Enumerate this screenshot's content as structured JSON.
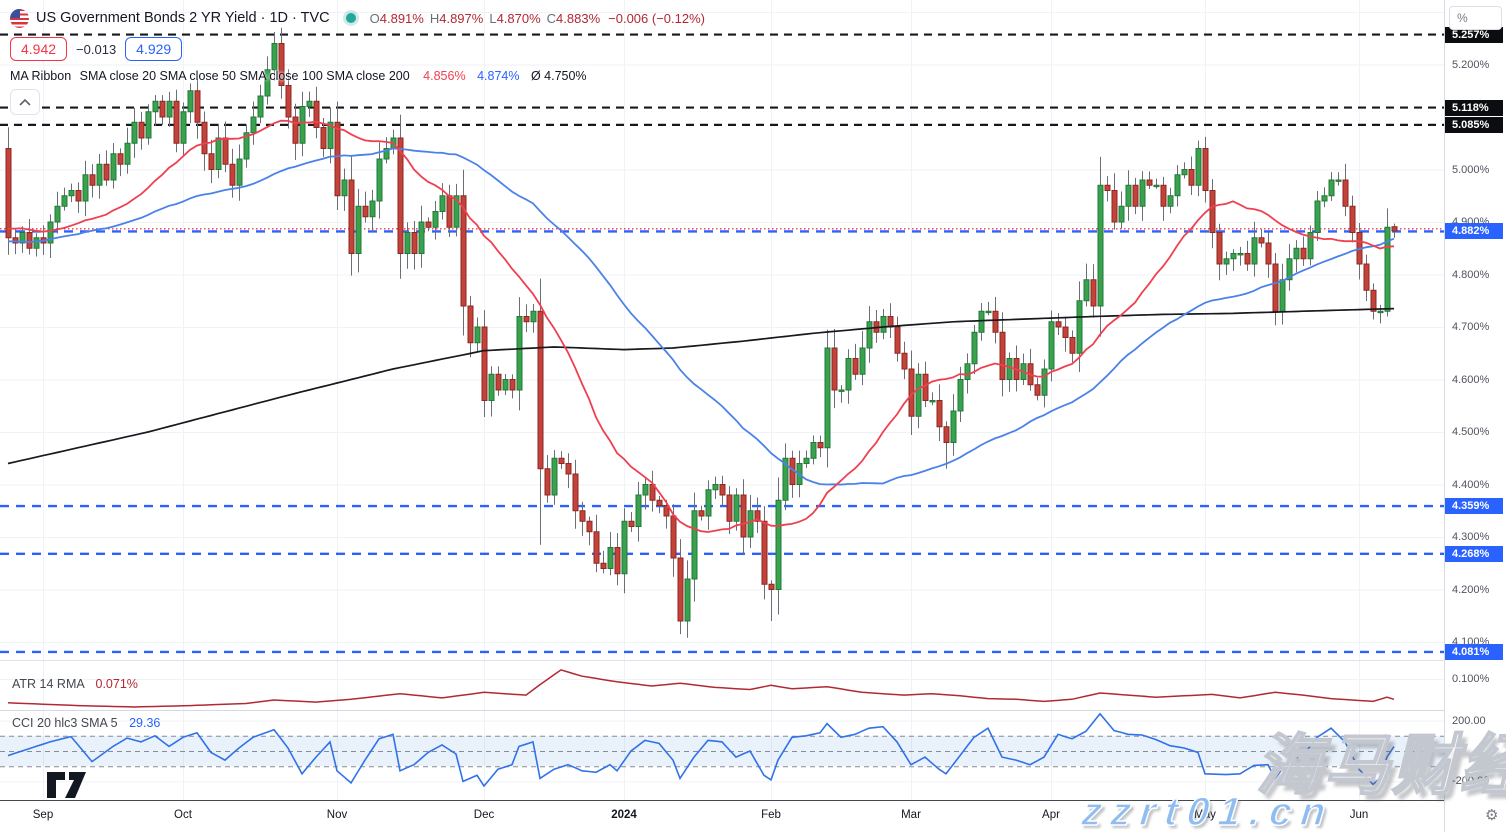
{
  "header": {
    "symbol_title": "US Government Bonds 2 YR Yield · 1D · TVC",
    "ohlc_items": [
      {
        "label": "O",
        "value": "4.891%"
      },
      {
        "label": "H",
        "value": "4.897%"
      },
      {
        "label": "L",
        "value": "4.870%"
      },
      {
        "label": "C",
        "value": "4.883%"
      }
    ],
    "change": "−0.006 (−0.12%)",
    "sell_price": "4.942",
    "spread": "−0.013",
    "buy_price": "4.929",
    "ma_legend": {
      "name": "MA Ribbon",
      "params": "SMA close 20 SMA close 50 SMA close 100 SMA close 200",
      "v1": "4.856%",
      "v2": "4.874%",
      "avg": "Ø 4.750%"
    }
  },
  "indicators": {
    "atr": {
      "name": "ATR 14 RMA",
      "value": "0.071%"
    },
    "cci": {
      "name": "CCI 20 hlc3 SMA 5",
      "value": "29.36"
    }
  },
  "axis": {
    "percent_button": "%",
    "gear_icon": "⚙",
    "price_labels": [
      {
        "label": "5.200%",
        "price": 5.2
      },
      {
        "label": "5.000%",
        "price": 5.0
      },
      {
        "label": "4.900%",
        "price": 4.9
      },
      {
        "label": "4.800%",
        "price": 4.8
      },
      {
        "label": "4.700%",
        "price": 4.7
      },
      {
        "label": "4.600%",
        "price": 4.6
      },
      {
        "label": "4.500%",
        "price": 4.5
      },
      {
        "label": "4.400%",
        "price": 4.4
      },
      {
        "label": "4.300%",
        "price": 4.3
      },
      {
        "label": "4.200%",
        "price": 4.2
      },
      {
        "label": "4.100%",
        "price": 4.1
      }
    ],
    "black_badges": [
      {
        "label": "5.257%",
        "price": 5.257
      },
      {
        "label": "5.118%",
        "price": 5.118
      },
      {
        "label": "5.085%",
        "price": 5.085
      }
    ],
    "blue_badges": [
      {
        "label": "4.882%",
        "price": 4.882
      },
      {
        "label": "4.359%",
        "price": 4.359
      },
      {
        "label": "4.268%",
        "price": 4.268
      },
      {
        "label": "4.081%",
        "price": 4.081
      }
    ],
    "atr_labels": [
      {
        "label": "0.100%",
        "value": 0.1
      }
    ],
    "cci_labels": [
      {
        "label": "200.00",
        "value": 200
      },
      {
        "label": "-200.00",
        "value": -200
      }
    ]
  },
  "time_axis": {
    "months": [
      {
        "label": "Sep",
        "bar": 5
      },
      {
        "label": "Oct",
        "bar": 25
      },
      {
        "label": "Nov",
        "bar": 47
      },
      {
        "label": "Dec",
        "bar": 68
      },
      {
        "label": "2024",
        "bar": 88,
        "bold": true
      },
      {
        "label": "Feb",
        "bar": 109
      },
      {
        "label": "Mar",
        "bar": 129
      },
      {
        "label": "Apr",
        "bar": 149
      },
      {
        "label": "May",
        "bar": 171
      },
      {
        "label": "Jun",
        "bar": 193
      }
    ]
  },
  "levels": {
    "black_dashed": [
      5.257,
      5.118,
      5.085
    ],
    "blue_dashed": [
      4.882,
      4.359,
      4.268,
      4.081
    ],
    "red_dotted": [
      4.887
    ]
  },
  "watermarks": {
    "main": "海马财经",
    "sub": "zzrt01.cn"
  },
  "colors": {
    "up_fill": "#3aa24f",
    "up_stroke": "#1f7a36",
    "down_fill": "#c2433a",
    "down_stroke": "#8f2620",
    "wick": "#6a6e77",
    "ma_red": "#ef4050",
    "ma_blue": "#4b82e8",
    "ma_black": "#17191e",
    "level_blue": "#2962ff",
    "level_black": "#16181d",
    "level_red": "#ef3a45",
    "atr_line": "#b22833",
    "cci_line": "#3172e8",
    "cci_band": "rgba(120,170,225,0.16)",
    "cci_band_edge": "#878c96",
    "grid": "#f0f2f7",
    "sep": "#dfe2ea"
  },
  "chart_data": {
    "type": "candlestick",
    "title": "US Government Bonds 2 YR Yield",
    "interval": "1D",
    "exchange": "TVC",
    "unit": "%",
    "y_range": [
      4.05,
      5.3
    ],
    "x_categories": [
      "Sep",
      "Oct",
      "Nov",
      "Dec",
      "2024",
      "Feb",
      "Mar",
      "Apr",
      "May",
      "Jun"
    ],
    "closes": [
      4.87,
      4.86,
      4.88,
      4.85,
      4.87,
      4.86,
      4.9,
      4.93,
      4.95,
      4.96,
      4.94,
      4.99,
      4.97,
      5.01,
      4.98,
      5.03,
      5.01,
      5.05,
      5.09,
      5.06,
      5.11,
      5.13,
      5.1,
      5.13,
      5.05,
      5.11,
      5.15,
      5.09,
      5.03,
      5.0,
      5.06,
      5.01,
      4.97,
      5.02,
      5.07,
      5.1,
      5.14,
      5.19,
      5.24,
      5.16,
      5.1,
      5.05,
      5.12,
      5.13,
      5.08,
      5.04,
      5.09,
      4.95,
      4.98,
      4.84,
      4.93,
      4.91,
      4.94,
      5.02,
      5.04,
      5.06,
      4.84,
      4.88,
      4.84,
      4.9,
      4.89,
      4.92,
      4.95,
      4.89,
      4.95,
      4.74,
      4.67,
      4.7,
      4.56,
      4.61,
      4.58,
      4.6,
      4.58,
      4.72,
      4.71,
      4.73,
      4.43,
      4.38,
      4.45,
      4.44,
      4.42,
      4.35,
      4.33,
      4.31,
      4.25,
      4.24,
      4.28,
      4.23,
      4.33,
      4.32,
      4.38,
      4.4,
      4.37,
      4.36,
      4.34,
      4.26,
      4.14,
      4.22,
      4.35,
      4.34,
      4.39,
      4.4,
      4.38,
      4.33,
      4.38,
      4.3,
      4.35,
      4.33,
      4.21,
      4.2,
      4.37,
      4.45,
      4.4,
      4.44,
      4.45,
      4.48,
      4.47,
      4.66,
      4.58,
      4.58,
      4.64,
      4.61,
      4.66,
      4.71,
      4.69,
      4.72,
      4.7,
      4.65,
      4.62,
      4.53,
      4.61,
      4.56,
      4.56,
      4.51,
      4.48,
      4.54,
      4.6,
      4.63,
      4.69,
      4.73,
      4.73,
      4.69,
      4.6,
      4.64,
      4.6,
      4.63,
      4.59,
      4.57,
      4.62,
      4.71,
      4.7,
      4.68,
      4.65,
      4.75,
      4.79,
      4.74,
      4.97,
      4.96,
      4.9,
      4.93,
      4.97,
      4.93,
      4.98,
      4.97,
      4.97,
      4.93,
      4.95,
      4.99,
      5.0,
      4.97,
      5.04,
      4.96,
      4.88,
      4.82,
      4.83,
      4.84,
      4.84,
      4.82,
      4.87,
      4.86,
      4.82,
      4.73,
      4.79,
      4.83,
      4.85,
      4.83,
      4.88,
      4.94,
      4.95,
      4.98,
      4.98,
      4.93,
      4.88,
      4.82,
      4.77,
      4.73,
      4.73,
      4.89,
      4.883
    ],
    "pre_closes": [
      4.85,
      4.88,
      4.9,
      4.87,
      4.83,
      4.79,
      4.76,
      4.78,
      4.82,
      4.85,
      4.83,
      4.8,
      4.84,
      4.87,
      4.9,
      4.86,
      4.82,
      4.84,
      4.87,
      4.85,
      4.82,
      4.8,
      4.84,
      4.86,
      4.89,
      4.87,
      4.84,
      4.86,
      4.89,
      4.91,
      4.88,
      4.85,
      4.87,
      4.9,
      4.92,
      4.89,
      4.86,
      4.88,
      4.9,
      4.87,
      4.85,
      4.88,
      4.91,
      4.93,
      4.9,
      4.87,
      4.89,
      4.92,
      4.9,
      4.88
    ],
    "overrides": {
      "0": {
        "o": 5.04
      },
      "38": {
        "h": 5.262
      },
      "76": {
        "l": 4.285
      },
      "96": {
        "l": 4.115
      },
      "109": {
        "l": 4.14
      },
      "134": {
        "l": 4.43
      },
      "170": {
        "h": 5.055
      },
      "197": {
        "l": 4.72
      },
      "198": {
        "o": 4.891,
        "h": 4.897,
        "l": 4.87
      }
    },
    "ma": {
      "red": "SMA 20",
      "blue": "SMA 50",
      "black": "SMA 200"
    },
    "sma_black_anchors": [
      [
        0,
        4.44
      ],
      [
        20,
        4.5
      ],
      [
        40,
        4.57
      ],
      [
        55,
        4.62
      ],
      [
        68,
        4.655
      ],
      [
        78,
        4.662
      ],
      [
        88,
        4.657
      ],
      [
        95,
        4.66
      ],
      [
        105,
        4.673
      ],
      [
        115,
        4.688
      ],
      [
        125,
        4.7
      ],
      [
        135,
        4.71
      ],
      [
        145,
        4.715
      ],
      [
        155,
        4.72
      ],
      [
        165,
        4.724
      ],
      [
        175,
        4.726
      ],
      [
        185,
        4.73
      ],
      [
        198,
        4.735
      ]
    ],
    "atr_anchors": [
      [
        0,
        0.066
      ],
      [
        10,
        0.062
      ],
      [
        18,
        0.06
      ],
      [
        26,
        0.062
      ],
      [
        34,
        0.065
      ],
      [
        38,
        0.07
      ],
      [
        44,
        0.067
      ],
      [
        49,
        0.071
      ],
      [
        56,
        0.079
      ],
      [
        62,
        0.073
      ],
      [
        68,
        0.081
      ],
      [
        74,
        0.077
      ],
      [
        76,
        0.092
      ],
      [
        79,
        0.113
      ],
      [
        82,
        0.104
      ],
      [
        87,
        0.096
      ],
      [
        92,
        0.09
      ],
      [
        96,
        0.094
      ],
      [
        101,
        0.088
      ],
      [
        106,
        0.085
      ],
      [
        109,
        0.091
      ],
      [
        112,
        0.086
      ],
      [
        117,
        0.089
      ],
      [
        122,
        0.081
      ],
      [
        128,
        0.077
      ],
      [
        132,
        0.079
      ],
      [
        136,
        0.076
      ],
      [
        140,
        0.072
      ],
      [
        144,
        0.071
      ],
      [
        148,
        0.068
      ],
      [
        152,
        0.071
      ],
      [
        156,
        0.08
      ],
      [
        160,
        0.077
      ],
      [
        164,
        0.074
      ],
      [
        168,
        0.076
      ],
      [
        172,
        0.078
      ],
      [
        176,
        0.073
      ],
      [
        181,
        0.081
      ],
      [
        185,
        0.077
      ],
      [
        189,
        0.072
      ],
      [
        192,
        0.07
      ],
      [
        195,
        0.068
      ],
      [
        197,
        0.074
      ],
      [
        198,
        0.071
      ]
    ],
    "cci_anchors": [
      [
        0,
        -30
      ],
      [
        6,
        60
      ],
      [
        9,
        95
      ],
      [
        12,
        -70
      ],
      [
        15,
        30
      ],
      [
        17,
        85
      ],
      [
        19,
        60
      ],
      [
        21,
        100
      ],
      [
        23,
        30
      ],
      [
        25,
        90
      ],
      [
        27,
        120
      ],
      [
        29,
        -10
      ],
      [
        31,
        -60
      ],
      [
        33,
        20
      ],
      [
        35,
        90
      ],
      [
        38,
        140
      ],
      [
        40,
        20
      ],
      [
        42,
        -150
      ],
      [
        44,
        -40
      ],
      [
        46,
        60
      ],
      [
        47,
        -130
      ],
      [
        49,
        -210
      ],
      [
        51,
        -60
      ],
      [
        53,
        80
      ],
      [
        55,
        110
      ],
      [
        56,
        -130
      ],
      [
        58,
        -90
      ],
      [
        60,
        -10
      ],
      [
        62,
        40
      ],
      [
        64,
        -20
      ],
      [
        65,
        -200
      ],
      [
        67,
        -160
      ],
      [
        68,
        -230
      ],
      [
        70,
        -120
      ],
      [
        72,
        -90
      ],
      [
        73,
        30
      ],
      [
        75,
        60
      ],
      [
        76,
        -180
      ],
      [
        78,
        -120
      ],
      [
        80,
        -90
      ],
      [
        82,
        -130
      ],
      [
        84,
        -140
      ],
      [
        86,
        -90
      ],
      [
        87,
        -130
      ],
      [
        89,
        0
      ],
      [
        91,
        70
      ],
      [
        93,
        50
      ],
      [
        95,
        -60
      ],
      [
        96,
        -180
      ],
      [
        98,
        -40
      ],
      [
        100,
        70
      ],
      [
        102,
        60
      ],
      [
        104,
        -40
      ],
      [
        106,
        0
      ],
      [
        108,
        -160
      ],
      [
        109,
        -190
      ],
      [
        110,
        -60
      ],
      [
        112,
        90
      ],
      [
        114,
        100
      ],
      [
        116,
        120
      ],
      [
        117,
        180
      ],
      [
        119,
        90
      ],
      [
        121,
        110
      ],
      [
        123,
        150
      ],
      [
        125,
        160
      ],
      [
        127,
        60
      ],
      [
        129,
        -90
      ],
      [
        131,
        -40
      ],
      [
        133,
        -120
      ],
      [
        134,
        -150
      ],
      [
        136,
        -30
      ],
      [
        138,
        90
      ],
      [
        140,
        150
      ],
      [
        142,
        -40
      ],
      [
        144,
        -60
      ],
      [
        146,
        -90
      ],
      [
        148,
        -40
      ],
      [
        150,
        110
      ],
      [
        152,
        80
      ],
      [
        154,
        130
      ],
      [
        156,
        245
      ],
      [
        158,
        135
      ],
      [
        160,
        110
      ],
      [
        162,
        105
      ],
      [
        164,
        75
      ],
      [
        166,
        35
      ],
      [
        168,
        20
      ],
      [
        170,
        -10
      ],
      [
        171,
        -150
      ],
      [
        174,
        -155
      ],
      [
        176,
        -150
      ],
      [
        178,
        -95
      ],
      [
        180,
        -90
      ],
      [
        181,
        -180
      ],
      [
        183,
        -60
      ],
      [
        185,
        -30
      ],
      [
        187,
        90
      ],
      [
        189,
        150
      ],
      [
        191,
        60
      ],
      [
        193,
        -120
      ],
      [
        195,
        -220
      ],
      [
        196,
        -180
      ],
      [
        197,
        -40
      ],
      [
        198,
        29.36
      ]
    ],
    "cci_band": [
      -100,
      100
    ]
  }
}
